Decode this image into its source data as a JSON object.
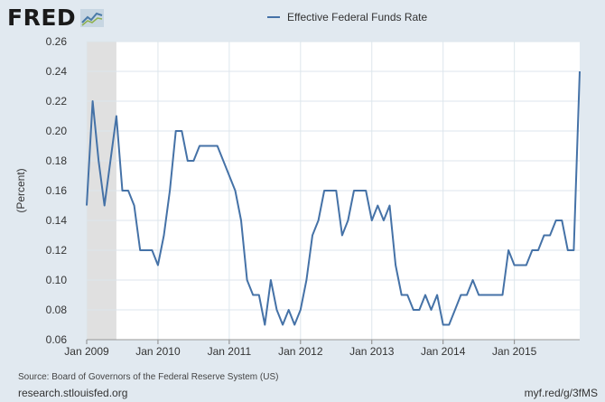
{
  "header": {
    "logo_text": "FRED",
    "logo_mark": "chart-line-icon"
  },
  "footer": {
    "source": "Source: Board of Governors of the Federal Reserve System (US)",
    "site": "research.stlouisfed.org",
    "short_url": "myf.red/g/3fMS"
  },
  "colors": {
    "background": "#e1e9f0",
    "plot": "#ffffff",
    "series": "#4572a7",
    "recession": "#e0e0e0",
    "grid": "#dde6ec"
  },
  "chart_data": {
    "type": "line",
    "title": "",
    "xlabel": "",
    "ylabel": "(Percent)",
    "ylim": [
      0.06,
      0.26
    ],
    "yticks": [
      0.06,
      0.08,
      0.1,
      0.12,
      0.14,
      0.16,
      0.18,
      0.2,
      0.22,
      0.24,
      0.26
    ],
    "ytick_labels": [
      "0.06",
      "0.08",
      "0.10",
      "0.12",
      "0.14",
      "0.16",
      "0.18",
      "0.20",
      "0.22",
      "0.24",
      "0.26"
    ],
    "xticks": [
      "Jan 2009",
      "Jan 2010",
      "Jan 2011",
      "Jan 2012",
      "Jan 2013",
      "Jan 2014",
      "Jan 2015"
    ],
    "x_start": "Jan 2009",
    "x_end": "Dec 2015",
    "recession": {
      "start": "Jan 2009",
      "end": "Jun 2009"
    },
    "legend": "top-center",
    "grid": true,
    "series": [
      {
        "name": "Effective Federal Funds Rate",
        "values": [
          0.15,
          0.22,
          0.18,
          0.15,
          0.18,
          0.21,
          0.16,
          0.16,
          0.15,
          0.12,
          0.12,
          0.12,
          0.11,
          0.13,
          0.16,
          0.2,
          0.2,
          0.18,
          0.18,
          0.19,
          0.19,
          0.19,
          0.19,
          0.18,
          0.17,
          0.16,
          0.14,
          0.1,
          0.09,
          0.09,
          0.07,
          0.1,
          0.08,
          0.07,
          0.08,
          0.07,
          0.08,
          0.1,
          0.13,
          0.14,
          0.16,
          0.16,
          0.16,
          0.13,
          0.14,
          0.16,
          0.16,
          0.16,
          0.14,
          0.15,
          0.14,
          0.15,
          0.11,
          0.09,
          0.09,
          0.08,
          0.08,
          0.09,
          0.08,
          0.09,
          0.07,
          0.07,
          0.08,
          0.09,
          0.09,
          0.1,
          0.09,
          0.09,
          0.09,
          0.09,
          0.09,
          0.12,
          0.11,
          0.11,
          0.11,
          0.12,
          0.12,
          0.13,
          0.13,
          0.14,
          0.14,
          0.12,
          0.12,
          0.24
        ]
      }
    ]
  }
}
